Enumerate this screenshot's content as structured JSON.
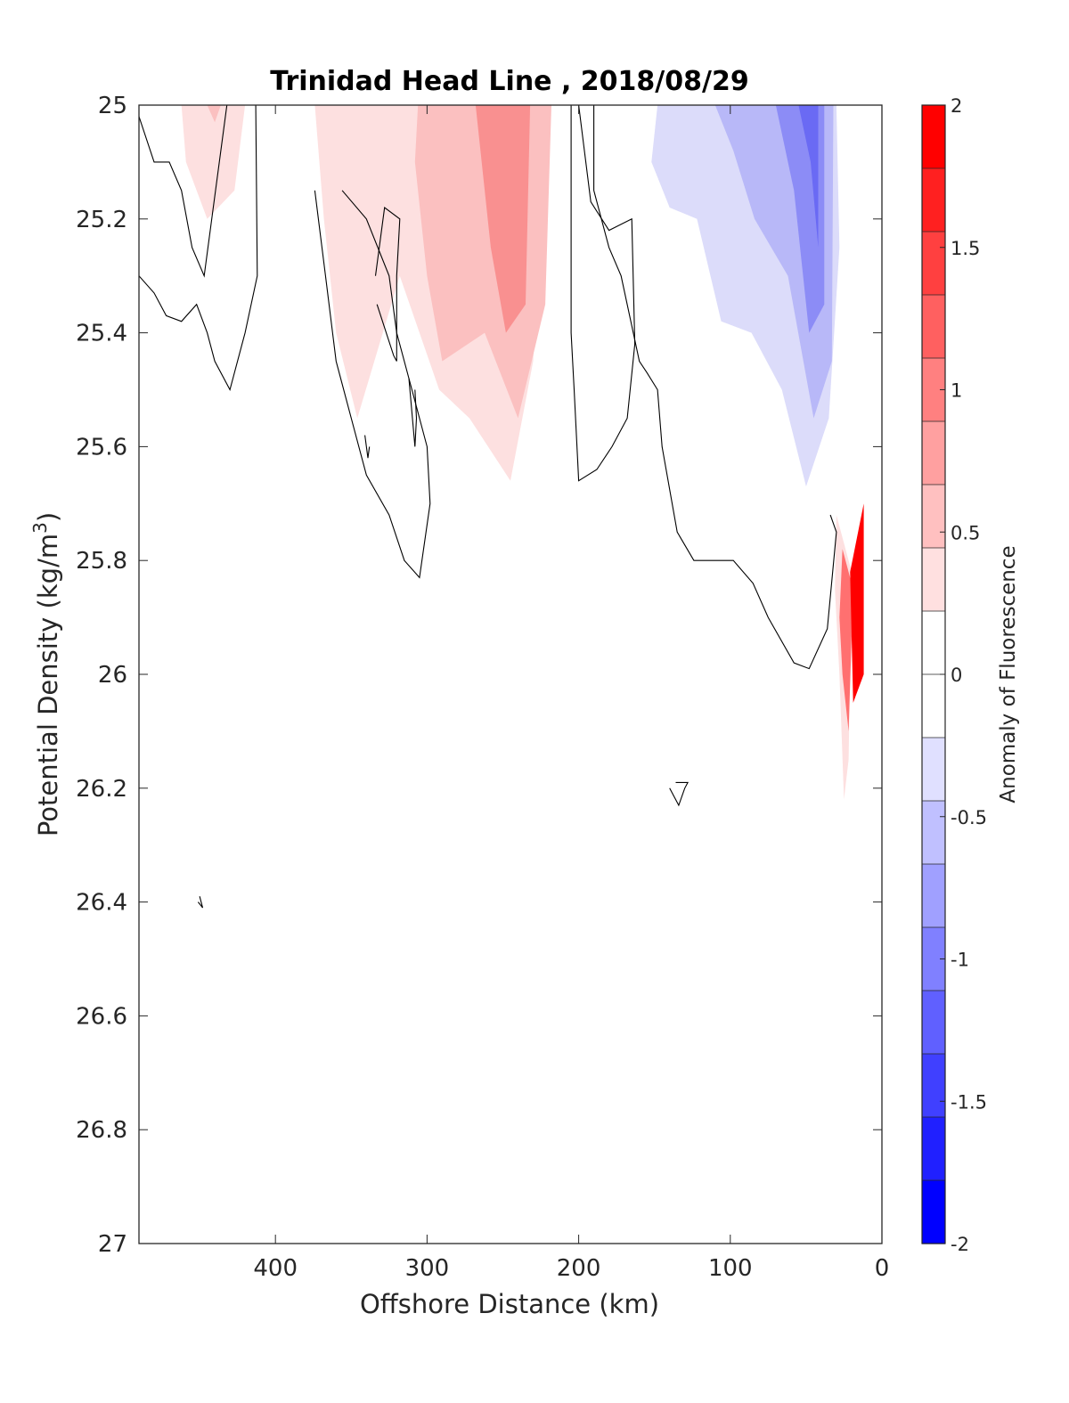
{
  "chart_data": {
    "type": "contour",
    "title": "Trinidad Head Line , 2018/08/29",
    "xlabel": "Offshore Distance (km)",
    "ylabel_main": "Potential Density (kg/m",
    "ylabel_sup": "3",
    "ylabel_end": ")",
    "xlim": [
      490,
      0
    ],
    "ylim": [
      25,
      27
    ],
    "x_reversed": true,
    "y_reversed": true,
    "xticks": [
      400,
      300,
      200,
      100,
      0
    ],
    "xtick_labels": [
      "400",
      "300",
      "200",
      "100",
      "0"
    ],
    "yticks": [
      25,
      25.2,
      25.4,
      25.6,
      25.8,
      26,
      26.2,
      26.4,
      26.6,
      26.8,
      27
    ],
    "ytick_labels": [
      "25",
      "25.2",
      "25.4",
      "25.6",
      "25.8",
      "26",
      "26.2",
      "26.4",
      "26.6",
      "26.8",
      "27"
    ],
    "colorbar": {
      "label": "Anomaly of Fluorescence",
      "range": [
        -2,
        2
      ],
      "levels": [
        -2,
        -1.75,
        -1.5,
        -1.25,
        -1,
        -0.75,
        -0.5,
        -0.25,
        0,
        0.25,
        0.5,
        0.75,
        1,
        1.25,
        1.5,
        1.75,
        2
      ],
      "colors": [
        "#0000ff",
        "#2020ff",
        "#4040ff",
        "#6060ff",
        "#8080ff",
        "#a0a0ff",
        "#c0c0ff",
        "#e0e0ff",
        "#ffffff",
        "#ffffff",
        "#ffe0e0",
        "#ffc0c0",
        "#ffa0a0",
        "#ff8080",
        "#ff6060",
        "#ff4040",
        "#ff2020",
        "#ff0000"
      ],
      "tick_values": [
        2,
        1.5,
        1,
        0.5,
        0,
        -0.5,
        -1,
        -1.5,
        -2
      ],
      "tick_labels": [
        "2",
        "1.5",
        "1",
        "0.5",
        "0",
        "-0.5",
        "-1",
        "-1.5",
        "-2"
      ]
    },
    "filled_regions": [
      {
        "level": 0.5,
        "color": "#fde0e0",
        "points": [
          [
            462,
            25
          ],
          [
            420,
            25
          ],
          [
            427,
            25.15
          ],
          [
            445,
            25.2
          ],
          [
            459,
            25.1
          ]
        ]
      },
      {
        "level": 0.75,
        "color": "#fbc0c0",
        "points": [
          [
            445,
            25
          ],
          [
            436,
            25
          ],
          [
            440,
            25.03
          ]
        ]
      },
      {
        "level": 0.5,
        "color": "#fde0e0",
        "points": [
          [
            374,
            25
          ],
          [
            220,
            25
          ],
          [
            225,
            25.2
          ],
          [
            230,
            25.45
          ],
          [
            245,
            25.66
          ],
          [
            272,
            25.55
          ],
          [
            292,
            25.5
          ],
          [
            318,
            25.3
          ],
          [
            346,
            25.55
          ],
          [
            360,
            25.4
          ],
          [
            368,
            25.2
          ]
        ]
      },
      {
        "level": 0.75,
        "color": "#fbc0c0",
        "points": [
          [
            306,
            25
          ],
          [
            218,
            25
          ],
          [
            222,
            25.35
          ],
          [
            240,
            25.55
          ],
          [
            262,
            25.4
          ],
          [
            290,
            25.45
          ],
          [
            300,
            25.3
          ],
          [
            308,
            25.1
          ]
        ]
      },
      {
        "level": 1.0,
        "color": "#f99090",
        "points": [
          [
            268,
            25
          ],
          [
            232,
            25
          ],
          [
            235,
            25.35
          ],
          [
            248,
            25.4
          ],
          [
            258,
            25.25
          ]
        ]
      },
      {
        "level": -0.5,
        "color": "#dcdcfa",
        "points": [
          [
            148,
            25
          ],
          [
            30,
            25
          ],
          [
            28,
            25.25
          ],
          [
            35,
            25.55
          ],
          [
            50,
            25.67
          ],
          [
            66,
            25.5
          ],
          [
            86,
            25.4
          ],
          [
            106,
            25.38
          ],
          [
            122,
            25.2
          ],
          [
            140,
            25.18
          ],
          [
            152,
            25.1
          ]
        ]
      },
      {
        "level": -0.75,
        "color": "#b8b8f8",
        "points": [
          [
            110,
            25
          ],
          [
            32,
            25
          ],
          [
            33,
            25.45
          ],
          [
            45,
            25.55
          ],
          [
            62,
            25.3
          ],
          [
            84,
            25.2
          ],
          [
            98,
            25.08
          ]
        ]
      },
      {
        "level": -1.0,
        "color": "#8c8cf6",
        "points": [
          [
            70,
            25
          ],
          [
            38,
            25
          ],
          [
            38,
            25.35
          ],
          [
            48,
            25.4
          ],
          [
            58,
            25.15
          ]
        ]
      },
      {
        "level": -1.25,
        "color": "#6a6af4",
        "points": [
          [
            55,
            25
          ],
          [
            42,
            25
          ],
          [
            42,
            25.25
          ],
          [
            47,
            25.1
          ]
        ]
      },
      {
        "level": 0.5,
        "color": "#fde0e0",
        "points": [
          [
            30,
            25.72
          ],
          [
            20,
            25.82
          ],
          [
            22,
            26.15
          ],
          [
            25,
            26.22
          ],
          [
            28,
            26.0
          ],
          [
            31,
            25.85
          ]
        ]
      },
      {
        "level": 1.25,
        "color": "#ff7070",
        "points": [
          [
            26,
            25.78
          ],
          [
            19,
            25.85
          ],
          [
            22,
            26.1
          ],
          [
            26,
            26.0
          ],
          [
            28,
            25.9
          ]
        ]
      },
      {
        "level": 1.75,
        "color": "#ff0000",
        "points": [
          [
            12,
            25.7
          ],
          [
            21,
            25.82
          ],
          [
            19,
            26.05
          ],
          [
            12,
            26.0
          ]
        ]
      }
    ],
    "contour_lines": [
      [
        [
          490,
          25.02
        ],
        [
          480,
          25.1
        ],
        [
          470,
          25.1
        ],
        [
          462,
          25.15
        ],
        [
          455,
          25.25
        ],
        [
          447,
          25.3
        ],
        [
          432,
          25.0
        ]
      ],
      [
        [
          490,
          25.3
        ],
        [
          480,
          25.33
        ],
        [
          472,
          25.37
        ],
        [
          462,
          25.38
        ],
        [
          452,
          25.35
        ],
        [
          445,
          25.4
        ],
        [
          440,
          25.45
        ],
        [
          430,
          25.5
        ],
        [
          420,
          25.4
        ],
        [
          412,
          25.3
        ],
        [
          413,
          25.0
        ]
      ],
      [
        [
          374,
          25.15
        ],
        [
          367,
          25.3
        ],
        [
          360,
          25.45
        ],
        [
          350,
          25.55
        ],
        [
          340,
          25.65
        ],
        [
          325,
          25.72
        ],
        [
          315,
          25.8
        ],
        [
          305,
          25.83
        ],
        [
          298,
          25.7
        ],
        [
          300,
          25.6
        ],
        [
          310,
          25.5
        ],
        [
          320,
          25.4
        ],
        [
          325,
          25.3
        ],
        [
          340,
          25.2
        ],
        [
          356,
          25.15
        ]
      ],
      [
        [
          333,
          25.35
        ],
        [
          322,
          25.44
        ],
        [
          320,
          25.45
        ],
        [
          320,
          25.3
        ],
        [
          318,
          25.2
        ],
        [
          328,
          25.18
        ],
        [
          334,
          25.3
        ]
      ],
      [
        [
          312,
          25.48
        ],
        [
          308,
          25.6
        ],
        [
          307,
          25.55
        ],
        [
          308,
          25.5
        ]
      ],
      [
        [
          341,
          25.58
        ],
        [
          339,
          25.62
        ],
        [
          338,
          25.6
        ]
      ],
      [
        [
          190,
          25.0
        ],
        [
          190,
          25.15
        ],
        [
          180,
          25.25
        ],
        [
          172,
          25.3
        ],
        [
          160,
          25.45
        ],
        [
          155,
          25.47
        ],
        [
          148,
          25.5
        ],
        [
          145,
          25.6
        ],
        [
          135,
          25.75
        ],
        [
          124,
          25.8
        ],
        [
          112,
          25.8
        ],
        [
          98,
          25.8
        ],
        [
          85,
          25.84
        ],
        [
          75,
          25.9
        ],
        [
          58,
          25.98
        ],
        [
          48,
          25.99
        ],
        [
          36,
          25.92
        ],
        [
          30,
          25.75
        ],
        [
          34,
          25.72
        ]
      ],
      [
        [
          205,
          25.0
        ],
        [
          205,
          25.4
        ],
        [
          203,
          25.5
        ],
        [
          200,
          25.66
        ],
        [
          188,
          25.64
        ],
        [
          178,
          25.6
        ],
        [
          168,
          25.55
        ],
        [
          163,
          25.42
        ],
        [
          165,
          25.2
        ],
        [
          180,
          25.22
        ],
        [
          192,
          25.17
        ],
        [
          200,
          25.0
        ]
      ],
      [
        [
          140,
          26.2
        ],
        [
          134,
          26.23
        ],
        [
          130,
          26.2
        ],
        [
          128,
          26.19
        ],
        [
          136,
          26.19
        ]
      ],
      [
        [
          450,
          26.39
        ],
        [
          448,
          26.41
        ],
        [
          451,
          26.4
        ]
      ]
    ]
  }
}
